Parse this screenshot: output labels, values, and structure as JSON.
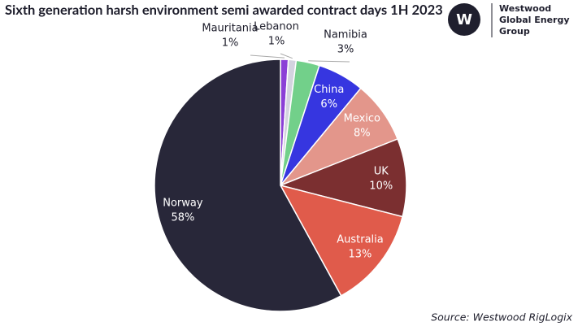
{
  "chart_data": {
    "type": "pie",
    "title": "Sixth generation harsh environment semi awarded contract days 1H 2023",
    "categories": [
      "Mauritania",
      "Lebanon",
      "Namibia",
      "China",
      "Mexico",
      "UK",
      "Australia",
      "Norway"
    ],
    "values": [
      1,
      1,
      3,
      6,
      8,
      10,
      13,
      58
    ],
    "value_labels": [
      "1%",
      "1%",
      "3%",
      "6%",
      "8%",
      "10%",
      "13%",
      "58%"
    ],
    "colors": [
      "#8b3fd6",
      "#d3d3df",
      "#72d08a",
      "#3636e0",
      "#e3968b",
      "#7b2f30",
      "#e05b4b",
      "#282739"
    ],
    "source": "Source: Westwood RigLogix"
  },
  "logo": {
    "mark": "W",
    "lines": [
      "Westwood",
      "Global Energy",
      "Group"
    ]
  }
}
